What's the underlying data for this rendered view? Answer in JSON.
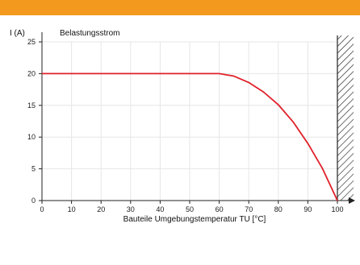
{
  "colors": {
    "accent_bar": "#f39a1e",
    "curve": "#e0202a",
    "axis": "#222222",
    "grid": "#e6e6e6"
  },
  "chart_data": {
    "type": "line",
    "title": "Belastungsstrom",
    "xlabel": "Bauteile Umgebungstemperatur TU [°C]",
    "ylabel": "I (A)",
    "xlim": [
      0,
      100
    ],
    "ylim": [
      0,
      25
    ],
    "x_ticks": [
      0,
      10,
      20,
      30,
      40,
      50,
      60,
      70,
      80,
      90,
      100
    ],
    "y_ticks": [
      0,
      5,
      10,
      15,
      20,
      25
    ],
    "grid": true,
    "series": [
      {
        "x": [
          0,
          60,
          65,
          70,
          75,
          80,
          85,
          90,
          95,
          100
        ],
        "y": [
          20,
          20,
          19.6,
          18.6,
          17.1,
          15.1,
          12.4,
          9.0,
          5.0,
          0
        ]
      }
    ],
    "hatched_region_x": [
      100,
      102
    ]
  }
}
